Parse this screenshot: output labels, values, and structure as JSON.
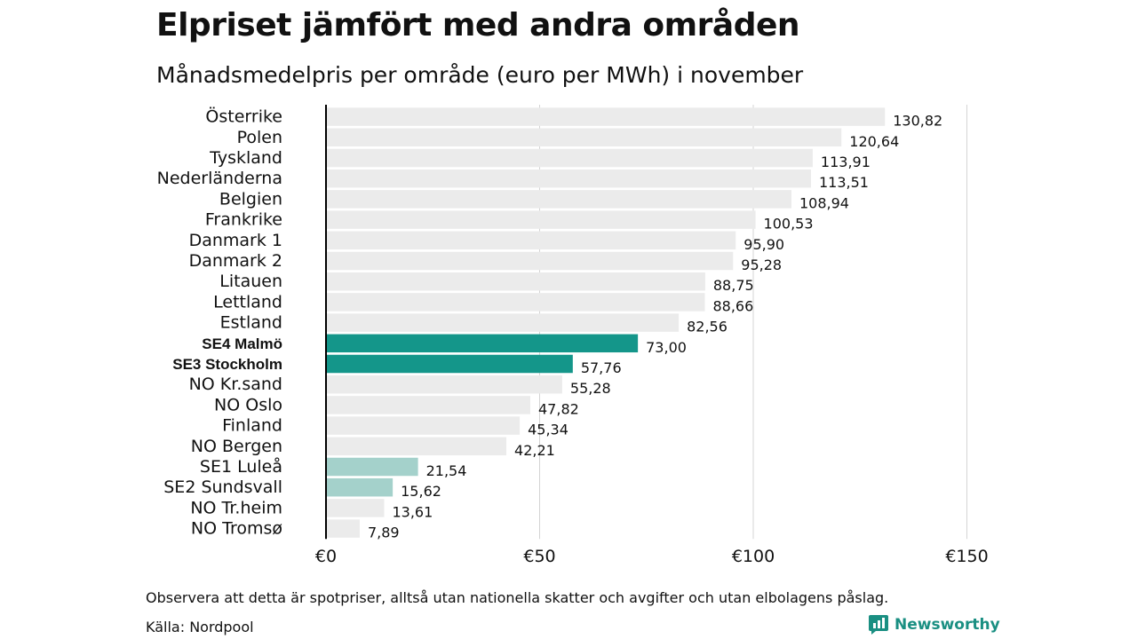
{
  "title": "Elpriset jämfört med andra områden",
  "subtitle": "Månadsmedelpris per område (euro per MWh) i november",
  "footnote": "Observera att detta är spotpriser, alltså utan nationella skatter och avgifter och utan elbolagens påslag.",
  "source": "Källa: Nordpool",
  "brand": {
    "name": "Newsworthy",
    "icon": "newsworthy-logo-icon"
  },
  "colors": {
    "default_bar": "#ebebeb",
    "highlight_bar": "#14968a",
    "light_highlight_bar": "#a4d1cb",
    "grid": "#d4d4d4",
    "axis": "#000000",
    "brand": "#1a8f82"
  },
  "chart_data": {
    "type": "bar",
    "orientation": "horizontal",
    "xlim": [
      0,
      150
    ],
    "x_ticks": [
      0,
      50,
      100,
      150
    ],
    "x_tick_labels": [
      "€0",
      "€50",
      "€100",
      "€150"
    ],
    "grid": true,
    "categories": [
      "Österrike",
      "Polen",
      "Tyskland",
      "Nederländerna",
      "Belgien",
      "Frankrike",
      "Danmark  1",
      "Danmark  2",
      "Litauen",
      "Lettland",
      "Estland",
      "SE4 Malmö",
      "SE3 Stockholm",
      "NO Kr.sand",
      "NO Oslo",
      "Finland",
      "NO Bergen",
      "SE1  Luleå",
      "SE2  Sundsvall",
      "NO Tr.heim",
      "NO Tromsø"
    ],
    "values": [
      130.82,
      120.64,
      113.91,
      113.51,
      108.94,
      100.53,
      95.9,
      95.28,
      88.75,
      88.66,
      82.56,
      73.0,
      57.76,
      55.28,
      47.82,
      45.34,
      42.21,
      21.54,
      15.62,
      13.61,
      7.89
    ],
    "value_labels": [
      "130,82",
      "120,64",
      "113,91",
      "113,51",
      "108,94",
      "100,53",
      "95,90",
      "95,28",
      "88,75",
      "88,66",
      "82,56",
      "73,00",
      "57,76",
      "55,28",
      "47,82",
      "45,34",
      "42,21",
      "21,54",
      "15,62",
      "13,61",
      "7,89"
    ],
    "highlight": [
      "default",
      "default",
      "default",
      "default",
      "default",
      "default",
      "default",
      "default",
      "default",
      "default",
      "default",
      "strong",
      "strong",
      "default",
      "default",
      "default",
      "default",
      "light",
      "light",
      "default",
      "default"
    ]
  }
}
